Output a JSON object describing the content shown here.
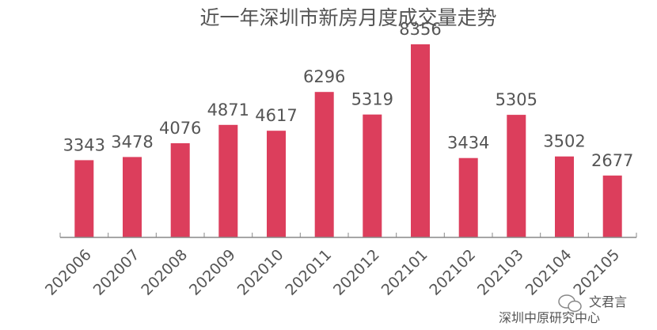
{
  "chart_data": {
    "type": "bar",
    "title": "近一年深圳市新房月度成交量走势",
    "categories": [
      "202006",
      "202007",
      "202008",
      "202009",
      "202010",
      "202011",
      "202012",
      "202101",
      "202102",
      "202103",
      "202104",
      "202105"
    ],
    "values": [
      3343,
      3478,
      4076,
      4871,
      4617,
      6296,
      5319,
      8356,
      3434,
      5305,
      3502,
      2677
    ],
    "xlabel": "",
    "ylabel": "",
    "ylim": [
      0,
      10000
    ],
    "grid": false,
    "legend": "none",
    "bar_color": "#dc3e5c",
    "axis_color": "#888888"
  },
  "watermark": {
    "wechat_name": "文君言",
    "source": "深圳中原研究中心"
  }
}
